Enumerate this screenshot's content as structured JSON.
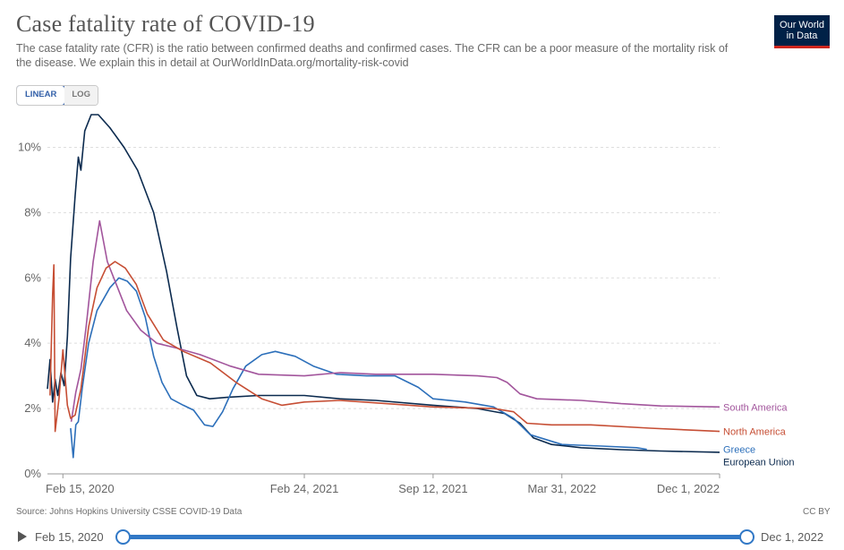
{
  "header": {
    "title": "Case fatality rate of COVID-19",
    "subtitle": "The case fatality rate (CFR) is the ratio between confirmed deaths and confirmed cases. The CFR can be a poor measure of the mortality risk of the disease. We explain this in detail at OurWorldInData.org/mortality-risk-covid",
    "logo_line1": "Our World",
    "logo_line2": "in Data"
  },
  "scale_toggle": {
    "linear_label": "LINEAR",
    "log_label": "LOG",
    "selected": "LINEAR"
  },
  "footer": {
    "source": "Source: Johns Hopkins University CSSE COVID-19 Data",
    "license": "CC BY"
  },
  "timeline": {
    "start_label": "Feb 15, 2020",
    "end_label": "Dec 1, 2022",
    "start_fraction": 0,
    "end_fraction": 1
  },
  "colors": {
    "European Union": "#0b2a4e",
    "Greece": "#2c6fba",
    "South America": "#a2559c",
    "North America": "#c64e34",
    "grid": "#dddddd",
    "accent": "#3178c6"
  },
  "chart_data": {
    "type": "line",
    "ylim": [
      0,
      11
    ],
    "y_ticks": [
      "0%",
      "2%",
      "4%",
      "6%",
      "8%",
      "10%"
    ],
    "y_tick_values": [
      0,
      2,
      4,
      6,
      8,
      10
    ],
    "x_ticks": [
      "Feb 15, 2020",
      "Feb 24, 2021",
      "Sep 12, 2021",
      "Mar 31, 2022",
      "Dec 1, 2022"
    ],
    "x_tick_values": [
      "2020-02-15",
      "2021-02-24",
      "2021-09-12",
      "2022-03-31",
      "2022-12-01"
    ],
    "xlim": [
      "2020-01-22",
      "2022-12-01"
    ],
    "grid": true,
    "series": [
      {
        "name": "European Union",
        "points": [
          [
            "2020-01-22",
            2.6
          ],
          [
            "2020-01-26",
            3.5
          ],
          [
            "2020-01-30",
            2.2
          ],
          [
            "2020-02-03",
            2.9
          ],
          [
            "2020-02-07",
            2.4
          ],
          [
            "2020-02-12",
            3.1
          ],
          [
            "2020-02-17",
            2.7
          ],
          [
            "2020-02-22",
            4.2
          ],
          [
            "2020-02-27",
            6.6
          ],
          [
            "2020-03-05",
            8.5
          ],
          [
            "2020-03-10",
            9.7
          ],
          [
            "2020-03-14",
            9.3
          ],
          [
            "2020-03-20",
            10.5
          ],
          [
            "2020-03-30",
            11.0
          ],
          [
            "2020-04-10",
            11.0
          ],
          [
            "2020-04-28",
            10.6
          ],
          [
            "2020-05-20",
            10.0
          ],
          [
            "2020-06-10",
            9.3
          ],
          [
            "2020-07-05",
            8.0
          ],
          [
            "2020-07-25",
            6.2
          ],
          [
            "2020-08-10",
            4.5
          ],
          [
            "2020-08-25",
            3.0
          ],
          [
            "2020-09-10",
            2.4
          ],
          [
            "2020-09-30",
            2.3
          ],
          [
            "2020-11-01",
            2.35
          ],
          [
            "2020-12-15",
            2.4
          ],
          [
            "2021-02-24",
            2.4
          ],
          [
            "2021-04-20",
            2.3
          ],
          [
            "2021-06-15",
            2.25
          ],
          [
            "2021-09-12",
            2.1
          ],
          [
            "2021-11-20",
            2.0
          ],
          [
            "2022-01-01",
            1.85
          ],
          [
            "2022-01-25",
            1.55
          ],
          [
            "2022-02-15",
            1.1
          ],
          [
            "2022-03-15",
            0.9
          ],
          [
            "2022-04-30",
            0.8
          ],
          [
            "2022-07-01",
            0.74
          ],
          [
            "2022-09-01",
            0.7
          ],
          [
            "2022-12-01",
            0.66
          ]
        ]
      },
      {
        "name": "Greece",
        "points": [
          [
            "2020-02-27",
            1.4
          ],
          [
            "2020-03-02",
            0.5
          ],
          [
            "2020-03-06",
            1.5
          ],
          [
            "2020-03-10",
            1.6
          ],
          [
            "2020-03-16",
            2.6
          ],
          [
            "2020-03-26",
            4.0
          ],
          [
            "2020-04-08",
            5.0
          ],
          [
            "2020-04-28",
            5.7
          ],
          [
            "2020-05-12",
            6.0
          ],
          [
            "2020-05-25",
            5.9
          ],
          [
            "2020-06-08",
            5.6
          ],
          [
            "2020-06-22",
            4.8
          ],
          [
            "2020-07-05",
            3.6
          ],
          [
            "2020-07-18",
            2.8
          ],
          [
            "2020-08-01",
            2.3
          ],
          [
            "2020-08-20",
            2.1
          ],
          [
            "2020-09-05",
            1.95
          ],
          [
            "2020-09-22",
            1.5
          ],
          [
            "2020-10-05",
            1.45
          ],
          [
            "2020-10-20",
            1.9
          ],
          [
            "2020-11-05",
            2.6
          ],
          [
            "2020-11-25",
            3.3
          ],
          [
            "2020-12-20",
            3.65
          ],
          [
            "2021-01-10",
            3.75
          ],
          [
            "2021-02-10",
            3.6
          ],
          [
            "2021-03-10",
            3.3
          ],
          [
            "2021-04-15",
            3.05
          ],
          [
            "2021-06-01",
            3.0
          ],
          [
            "2021-07-15",
            3.0
          ],
          [
            "2021-08-20",
            2.65
          ],
          [
            "2021-09-12",
            2.3
          ],
          [
            "2021-11-01",
            2.2
          ],
          [
            "2021-12-15",
            2.05
          ],
          [
            "2022-01-15",
            1.7
          ],
          [
            "2022-02-10",
            1.2
          ],
          [
            "2022-03-31",
            0.9
          ],
          [
            "2022-06-01",
            0.85
          ],
          [
            "2022-07-25",
            0.8
          ],
          [
            "2022-08-10",
            0.75
          ]
        ]
      },
      {
        "name": "South America",
        "points": [
          [
            "2020-02-28",
            1.6
          ],
          [
            "2020-03-06",
            2.5
          ],
          [
            "2020-03-14",
            3.2
          ],
          [
            "2020-03-22",
            4.5
          ],
          [
            "2020-04-02",
            6.5
          ],
          [
            "2020-04-12",
            7.75
          ],
          [
            "2020-04-24",
            6.5
          ],
          [
            "2020-05-08",
            5.8
          ],
          [
            "2020-05-24",
            5.0
          ],
          [
            "2020-06-15",
            4.4
          ],
          [
            "2020-07-10",
            4.0
          ],
          [
            "2020-08-10",
            3.85
          ],
          [
            "2020-09-15",
            3.65
          ],
          [
            "2020-11-01",
            3.3
          ],
          [
            "2020-12-15",
            3.05
          ],
          [
            "2021-02-24",
            3.0
          ],
          [
            "2021-04-20",
            3.1
          ],
          [
            "2021-06-15",
            3.05
          ],
          [
            "2021-09-12",
            3.05
          ],
          [
            "2021-11-20",
            3.0
          ],
          [
            "2021-12-20",
            2.95
          ],
          [
            "2022-01-05",
            2.8
          ],
          [
            "2022-01-25",
            2.45
          ],
          [
            "2022-02-20",
            2.3
          ],
          [
            "2022-04-30",
            2.25
          ],
          [
            "2022-07-01",
            2.15
          ],
          [
            "2022-09-01",
            2.08
          ],
          [
            "2022-12-01",
            2.05
          ]
        ]
      },
      {
        "name": "North America",
        "points": [
          [
            "2020-01-26",
            2.4
          ],
          [
            "2020-01-30",
            5.5
          ],
          [
            "2020-02-01",
            6.4
          ],
          [
            "2020-02-03",
            1.3
          ],
          [
            "2020-02-09",
            2.3
          ],
          [
            "2020-02-15",
            3.8
          ],
          [
            "2020-02-22",
            2.1
          ],
          [
            "2020-02-27",
            1.7
          ],
          [
            "2020-03-05",
            1.8
          ],
          [
            "2020-03-14",
            2.6
          ],
          [
            "2020-03-26",
            4.5
          ],
          [
            "2020-04-08",
            5.7
          ],
          [
            "2020-04-22",
            6.3
          ],
          [
            "2020-05-06",
            6.5
          ],
          [
            "2020-05-22",
            6.3
          ],
          [
            "2020-06-08",
            5.8
          ],
          [
            "2020-06-25",
            4.9
          ],
          [
            "2020-07-20",
            4.1
          ],
          [
            "2020-08-20",
            3.75
          ],
          [
            "2020-10-01",
            3.4
          ],
          [
            "2020-11-10",
            2.8
          ],
          [
            "2020-12-20",
            2.3
          ],
          [
            "2021-01-20",
            2.1
          ],
          [
            "2021-02-24",
            2.2
          ],
          [
            "2021-04-20",
            2.25
          ],
          [
            "2021-07-01",
            2.15
          ],
          [
            "2021-09-12",
            2.05
          ],
          [
            "2021-12-15",
            2.0
          ],
          [
            "2022-01-15",
            1.9
          ],
          [
            "2022-02-05",
            1.55
          ],
          [
            "2022-03-15",
            1.5
          ],
          [
            "2022-05-15",
            1.5
          ],
          [
            "2022-08-15",
            1.4
          ],
          [
            "2022-12-01",
            1.3
          ]
        ]
      }
    ],
    "line_end_labels": [
      "South America",
      "North America",
      "European Union",
      "Greece"
    ]
  }
}
